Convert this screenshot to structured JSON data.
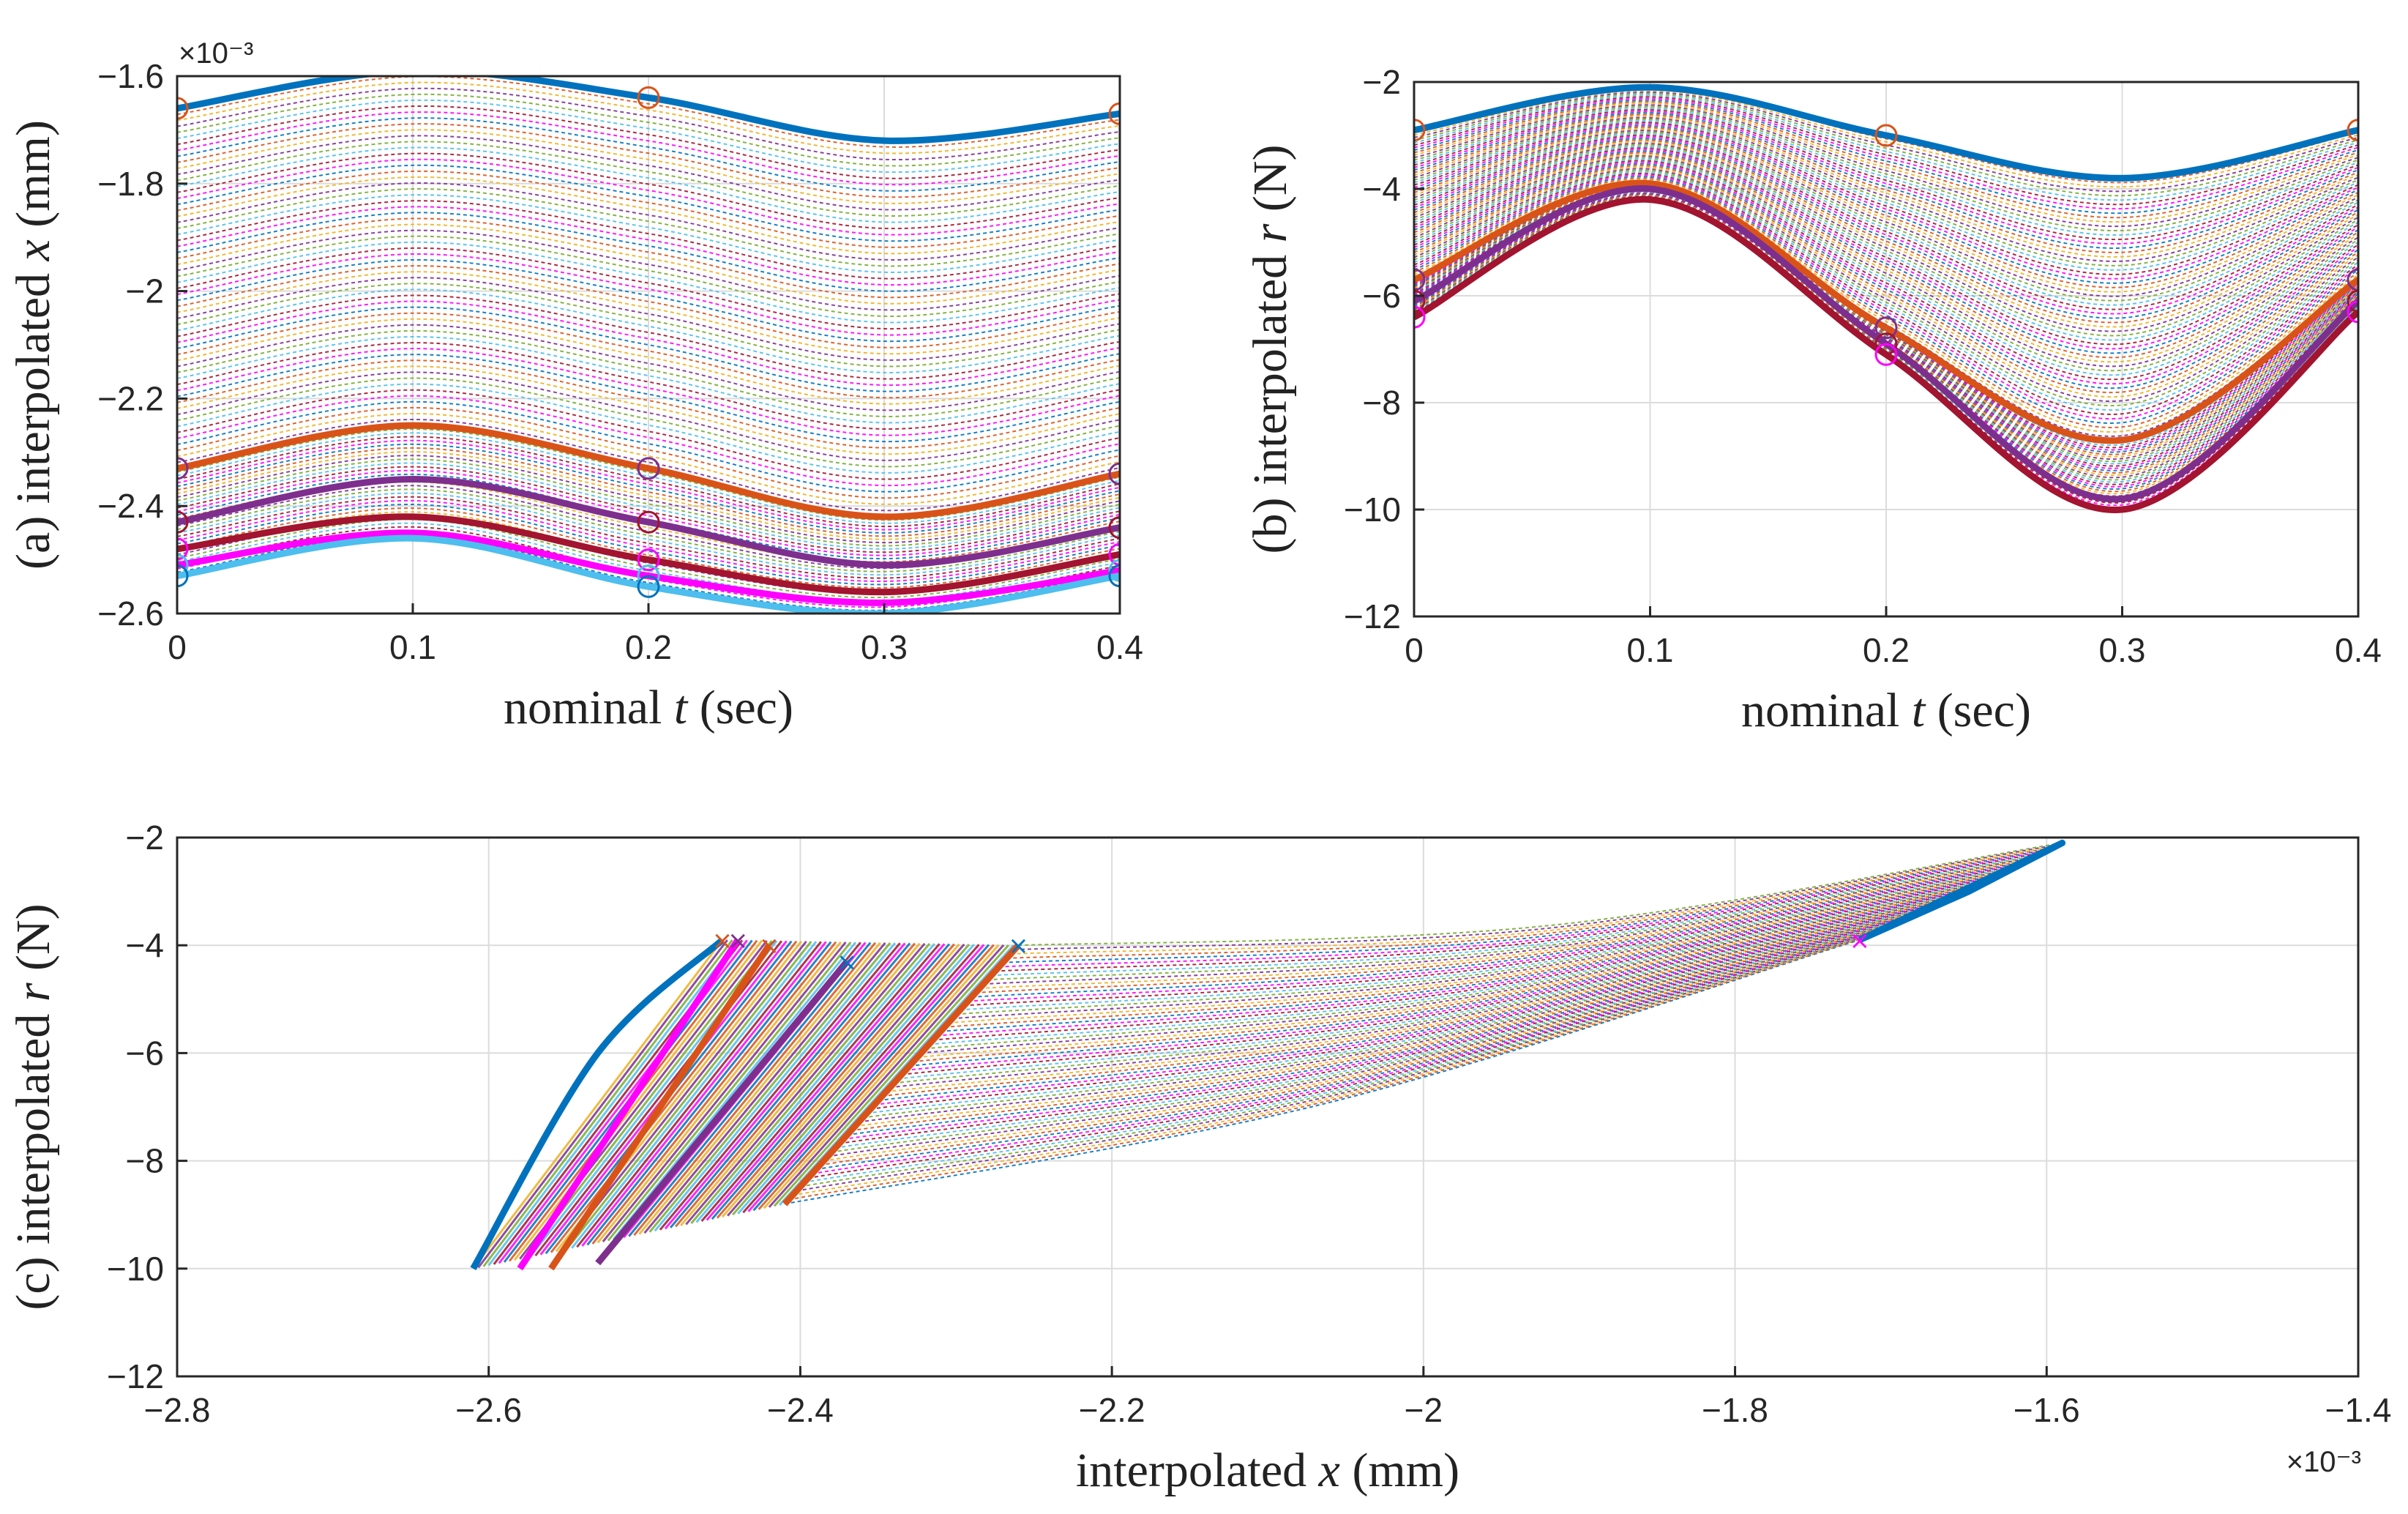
{
  "palette": [
    "#0072BD",
    "#D95319",
    "#EDB120",
    "#7E2F8E",
    "#77AC30",
    "#4DBEEE",
    "#A2142F",
    "#FF00FF"
  ],
  "chart_data": [
    {
      "id": "a",
      "type": "line",
      "ylabel_prefix": "(a) interpolated ",
      "ylabel_var": "x",
      "ylabel_suffix": " (mm)",
      "xlabel_prefix": "nominal ",
      "xlabel_var": "t",
      "xlabel_suffix": " (sec)",
      "xlim": [
        0,
        0.4
      ],
      "ylim": [
        -2.6,
        -1.6
      ],
      "xticks": [
        0,
        0.1,
        0.2,
        0.3,
        0.4
      ],
      "xtick_labels": [
        "0",
        "0.1",
        "0.2",
        "0.3",
        "0.4"
      ],
      "yticks": [
        -2.6,
        -2.4,
        -2.2,
        -2.0,
        -1.8,
        -1.6
      ],
      "ytick_labels": [
        "−2.6",
        "−2.4",
        "−2.2",
        "−2",
        "−1.8",
        "−1.6"
      ],
      "exponent_label": "×10⁻³",
      "grid": true,
      "x": [
        0,
        0.1,
        0.2,
        0.3,
        0.4
      ],
      "family_count": 60,
      "series": [
        {
          "name": "top envelope",
          "values": [
            -1.66,
            -1.59,
            -1.64,
            -1.72,
            -1.67
          ],
          "width": "thick"
        },
        {
          "name": "orange band",
          "values": [
            -2.33,
            -2.25,
            -2.33,
            -2.42,
            -2.34
          ],
          "width": "thick"
        },
        {
          "name": "purple curve",
          "values": [
            -2.43,
            -2.35,
            -2.43,
            -2.51,
            -2.44
          ],
          "width": "thick"
        },
        {
          "name": "red curve",
          "values": [
            -2.48,
            -2.42,
            -2.5,
            -2.56,
            -2.49
          ],
          "width": "thick"
        },
        {
          "name": "magenta curve",
          "values": [
            -2.51,
            -2.45,
            -2.53,
            -2.58,
            -2.52
          ],
          "width": "thick"
        },
        {
          "name": "bottom envelope",
          "values": [
            -2.53,
            -2.46,
            -2.55,
            -2.6,
            -2.53
          ],
          "width": "thick"
        }
      ]
    },
    {
      "id": "b",
      "type": "line",
      "ylabel_prefix": "(b) interpolated ",
      "ylabel_var": "r",
      "ylabel_suffix": " (N)",
      "xlabel_prefix": "nominal ",
      "xlabel_var": "t",
      "xlabel_suffix": " (sec)",
      "xlim": [
        0,
        0.4
      ],
      "ylim": [
        -12,
        -2
      ],
      "xticks": [
        0,
        0.1,
        0.2,
        0.3,
        0.4
      ],
      "xtick_labels": [
        "0",
        "0.1",
        "0.2",
        "0.3",
        "0.4"
      ],
      "yticks": [
        -12,
        -10,
        -8,
        -6,
        -4,
        -2
      ],
      "ytick_labels": [
        "−12",
        "−10",
        "−8",
        "−6",
        "−4",
        "−2"
      ],
      "grid": true,
      "x": [
        0,
        0.1,
        0.2,
        0.3,
        0.4
      ],
      "family_count": 60,
      "series": [
        {
          "name": "top envelope",
          "values": [
            -2.9,
            -2.1,
            -3.0,
            -3.8,
            -2.9
          ],
          "width": "thick"
        },
        {
          "name": "orange curve",
          "values": [
            -5.7,
            -3.9,
            -6.6,
            -8.7,
            -5.7
          ],
          "width": "thick"
        },
        {
          "name": "purple curve",
          "values": [
            -6.1,
            -4.0,
            -6.9,
            -9.8,
            -6.1
          ],
          "width": "thick"
        },
        {
          "name": "bottom envelope",
          "values": [
            -6.4,
            -4.2,
            -7.1,
            -10.0,
            -6.3
          ],
          "width": "thick"
        }
      ]
    },
    {
      "id": "c",
      "type": "line",
      "ylabel_prefix": "(c) interpolated ",
      "ylabel_var": "r",
      "ylabel_suffix": " (N)",
      "xlabel_prefix": "interpolated ",
      "xlabel_var": "x",
      "xlabel_suffix": " (mm)",
      "xlim": [
        -2.8,
        -1.4
      ],
      "ylim": [
        -12,
        -2
      ],
      "xticks": [
        -2.8,
        -2.6,
        -2.4,
        -2.2,
        -2.0,
        -1.8,
        -1.6,
        -1.4
      ],
      "xtick_labels": [
        "−2.8",
        "−2.6",
        "−2.4",
        "−2.2",
        "−2",
        "−1.8",
        "−1.6",
        "−1.4"
      ],
      "yticks": [
        -12,
        -10,
        -8,
        -6,
        -4,
        -2
      ],
      "ytick_labels": [
        "−12",
        "−10",
        "−8",
        "−6",
        "−4",
        "−2"
      ],
      "exponent_label": "×10⁻³",
      "grid": true,
      "family_count": 60,
      "series": [
        {
          "name": "bottom-left boundary",
          "x": [
            -2.61,
            -2.53,
            -2.45
          ],
          "y": [
            -10.0,
            -6.0,
            -3.9
          ],
          "width": "thick"
        },
        {
          "name": "magenta stripe",
          "x": [
            -2.58,
            -2.44
          ],
          "y": [
            -10.0,
            -3.9
          ],
          "width": "thick"
        },
        {
          "name": "orange stripe 1",
          "x": [
            -2.56,
            -2.42
          ],
          "y": [
            -10.0,
            -4.0
          ],
          "width": "thick"
        },
        {
          "name": "purple stripe",
          "x": [
            -2.53,
            -2.37
          ],
          "y": [
            -9.9,
            -4.3
          ],
          "width": "thick"
        },
        {
          "name": "orange stripe 2",
          "x": [
            -2.41,
            -2.26
          ],
          "y": [
            -8.8,
            -4.0
          ],
          "width": "thick"
        },
        {
          "name": "upper-right loop",
          "x": [
            -1.72,
            -1.59,
            -1.65,
            -1.72
          ],
          "y": [
            -3.9,
            -2.1,
            -3.0,
            -3.9
          ],
          "width": "thick"
        }
      ]
    }
  ]
}
